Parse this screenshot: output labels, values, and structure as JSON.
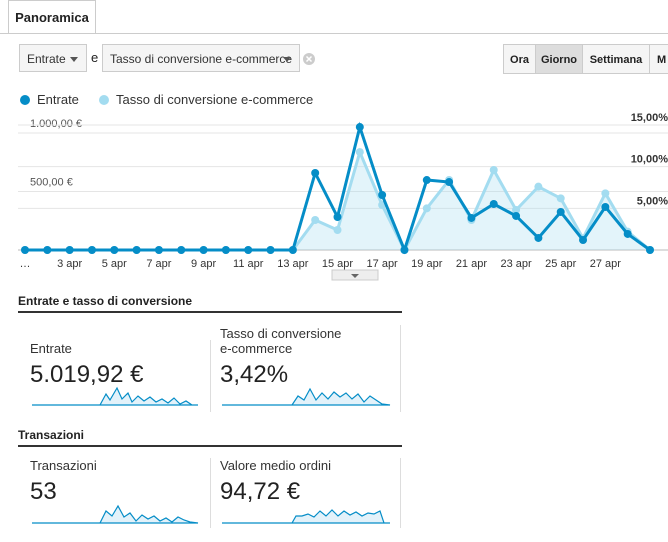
{
  "tab": "Panoramica",
  "controls": {
    "metric_1": "Entrate",
    "joiner": "e",
    "metric_2": "Tasso di conversione e-commerce",
    "granularity": [
      "Ora",
      "Giorno",
      "Settimana",
      "M"
    ]
  },
  "chart_data": {
    "type": "line",
    "categories": [
      "…",
      null,
      "3 apr",
      null,
      "5 apr",
      null,
      "7 apr",
      null,
      "9 apr",
      null,
      "11 apr",
      null,
      "13 apr",
      null,
      "15 apr",
      null,
      "17 apr",
      null,
      "19 apr",
      null,
      "21 apr",
      null,
      "23 apr",
      null,
      "25 apr",
      null,
      "27 apr",
      null,
      null
    ],
    "series": [
      {
        "name": "Entrate",
        "color": "#058dc7",
        "values": [
          0,
          0,
          0,
          0,
          0,
          0,
          0,
          0,
          0,
          0,
          0,
          0,
          0,
          658,
          282,
          1051,
          470,
          0,
          598,
          581,
          274,
          393,
          291,
          103,
          325,
          85,
          368,
          137,
          0
        ]
      },
      {
        "name": "Tasso di conversione e-commerce",
        "color": "#a3dcf0",
        "axis": "y2",
        "values": [
          0,
          0,
          0,
          0,
          0,
          0,
          0,
          0,
          0,
          0,
          0,
          0,
          0,
          3.6,
          2.4,
          11.75,
          5.4,
          0,
          5.0,
          8.4,
          3.6,
          9.6,
          4.8,
          7.6,
          6.2,
          1.4,
          6.8,
          2.2,
          0
        ]
      }
    ],
    "ylim": [
      0,
      1111
    ],
    "yticks": [
      {
        "value": 500,
        "label": "500,00 €"
      },
      {
        "value": 1000,
        "label": "1.000,00 €"
      }
    ],
    "y2lim": [
      0,
      15.6
    ],
    "y2ticks": [
      {
        "value": 5,
        "label": "5,00%"
      },
      {
        "value": 10,
        "label": "10,00%"
      },
      {
        "value": 15,
        "label": "15,00%"
      }
    ],
    "grid": true
  },
  "scorecards": [
    {
      "title": "Entrate e tasso di conversione",
      "cards": [
        {
          "label": "Entrate",
          "value": "5.019,92 €"
        },
        {
          "label": "Tasso di conversione e-commerce",
          "value": "3,42%"
        }
      ]
    },
    {
      "title": "Transazioni",
      "cards": [
        {
          "label": "Transazioni",
          "value": "53"
        },
        {
          "label": "Valore medio ordini",
          "value": "94,72 €"
        }
      ]
    }
  ]
}
